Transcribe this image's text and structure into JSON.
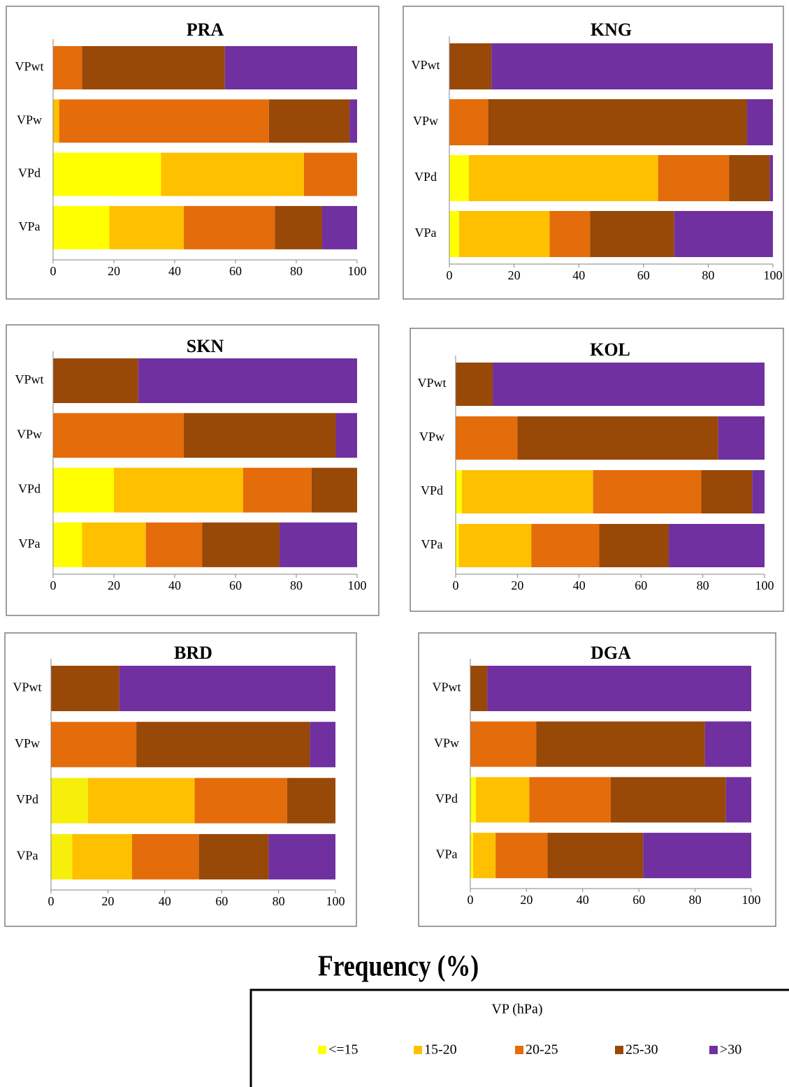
{
  "chart_data": [
    {
      "type": "stacked-barh",
      "title": "PRA",
      "categories": [
        "VPwt",
        "VPw",
        "VPd",
        "VPa"
      ],
      "xlim": [
        0,
        100
      ],
      "xticks": [
        0,
        20,
        40,
        60,
        80,
        100
      ],
      "series": [
        {
          "name": "<=15",
          "color": "#ffff00",
          "values": [
            0,
            0,
            35.5,
            18.5
          ]
        },
        {
          "name": "15-20",
          "color": "#ffc000",
          "values": [
            0,
            2,
            47,
            24.5
          ]
        },
        {
          "name": "20-25",
          "color": "#e46c0a",
          "values": [
            9.5,
            69,
            17.5,
            30
          ]
        },
        {
          "name": "25-30",
          "color": "#984807",
          "values": [
            47,
            26.5,
            0,
            15.5
          ]
        },
        {
          "name": ">30",
          "color": "#7030a0",
          "values": [
            43.5,
            2.5,
            0,
            11.5
          ]
        }
      ]
    },
    {
      "type": "stacked-barh",
      "title": "KNG",
      "categories": [
        "VPwt",
        "VPw",
        "VPd",
        "VPa"
      ],
      "xlim": [
        0,
        100
      ],
      "xticks": [
        0,
        20,
        40,
        60,
        80,
        100
      ],
      "series": [
        {
          "name": "<=15",
          "color": "#ffff00",
          "values": [
            0,
            0,
            6,
            3
          ]
        },
        {
          "name": "15-20",
          "color": "#ffc000",
          "values": [
            0,
            0,
            58.5,
            28
          ]
        },
        {
          "name": "20-25",
          "color": "#e46c0a",
          "values": [
            0,
            12,
            22,
            12.5
          ]
        },
        {
          "name": "25-30",
          "color": "#984807",
          "values": [
            13,
            80,
            12.5,
            26
          ]
        },
        {
          "name": ">30",
          "color": "#7030a0",
          "values": [
            87,
            8,
            1,
            30.5
          ]
        }
      ]
    },
    {
      "type": "stacked-barh",
      "title": "SKN",
      "categories": [
        "VPwt",
        "VPw",
        "VPd",
        "VPa"
      ],
      "xlim": [
        0,
        100
      ],
      "xticks": [
        0,
        20,
        40,
        60,
        80,
        100
      ],
      "series": [
        {
          "name": "<=15",
          "color": "#ffff00",
          "values": [
            0,
            0,
            20,
            9.5
          ]
        },
        {
          "name": "15-20",
          "color": "#ffc000",
          "values": [
            0,
            0,
            42.5,
            21
          ]
        },
        {
          "name": "20-25",
          "color": "#e46c0a",
          "values": [
            0,
            43,
            22.5,
            18.5
          ]
        },
        {
          "name": "25-30",
          "color": "#984807",
          "values": [
            28,
            50,
            15,
            25.5
          ]
        },
        {
          "name": ">30",
          "color": "#7030a0",
          "values": [
            72,
            7,
            0,
            25.5
          ]
        }
      ]
    },
    {
      "type": "stacked-barh",
      "title": "KOL",
      "categories": [
        "VPwt",
        "VPw",
        "VPd",
        "VPa"
      ],
      "xlim": [
        0,
        100
      ],
      "xticks": [
        0,
        20,
        40,
        60,
        80,
        100
      ],
      "series": [
        {
          "name": "<=15",
          "color": "#ffff00",
          "values": [
            0,
            0,
            2,
            1
          ]
        },
        {
          "name": "15-20",
          "color": "#ffc000",
          "values": [
            0,
            0,
            42.5,
            23.5
          ]
        },
        {
          "name": "20-25",
          "color": "#e46c0a",
          "values": [
            0,
            20,
            35,
            22
          ]
        },
        {
          "name": "25-30",
          "color": "#984807",
          "values": [
            12,
            65,
            16.5,
            22.5
          ]
        },
        {
          "name": ">30",
          "color": "#7030a0",
          "values": [
            88,
            15,
            4,
            31
          ]
        }
      ]
    },
    {
      "type": "stacked-barh",
      "title": "BRD",
      "categories": [
        "VPwt",
        "VPw",
        "VPd",
        "VPa"
      ],
      "xlim": [
        0,
        100
      ],
      "xticks": [
        0,
        20,
        40,
        60,
        80,
        100
      ],
      "series": [
        {
          "name": "<=15",
          "color": "#f5ef0a",
          "values": [
            0,
            0,
            13,
            7.5
          ]
        },
        {
          "name": "15-20",
          "color": "#ffc000",
          "values": [
            0,
            0,
            37.5,
            21
          ]
        },
        {
          "name": "20-25",
          "color": "#e46c0a",
          "values": [
            0,
            30,
            32.5,
            23.5
          ]
        },
        {
          "name": "25-30",
          "color": "#984807",
          "values": [
            24,
            61,
            17,
            24.5
          ]
        },
        {
          "name": ">30",
          "color": "#7030a0",
          "values": [
            76,
            9,
            0,
            23.5
          ]
        }
      ]
    },
    {
      "type": "stacked-barh",
      "title": "DGA",
      "categories": [
        "VPwt",
        "VPw",
        "VPd",
        "VPa"
      ],
      "xlim": [
        0,
        100
      ],
      "xticks": [
        0,
        20,
        40,
        60,
        80,
        100
      ],
      "series": [
        {
          "name": "<=15",
          "color": "#ffff00",
          "values": [
            0,
            0,
            2,
            1
          ]
        },
        {
          "name": "15-20",
          "color": "#ffc000",
          "values": [
            0,
            0,
            19,
            8
          ]
        },
        {
          "name": "20-25",
          "color": "#e46c0a",
          "values": [
            0,
            23.5,
            29,
            18.5
          ]
        },
        {
          "name": "25-30",
          "color": "#984807",
          "values": [
            6,
            60,
            41,
            34
          ]
        },
        {
          "name": ">30",
          "color": "#7030a0",
          "values": [
            94,
            16.5,
            9,
            38.5
          ]
        }
      ]
    }
  ],
  "x_label": "Frequency (%)",
  "legend": {
    "title": "VP (hPa)"
  }
}
